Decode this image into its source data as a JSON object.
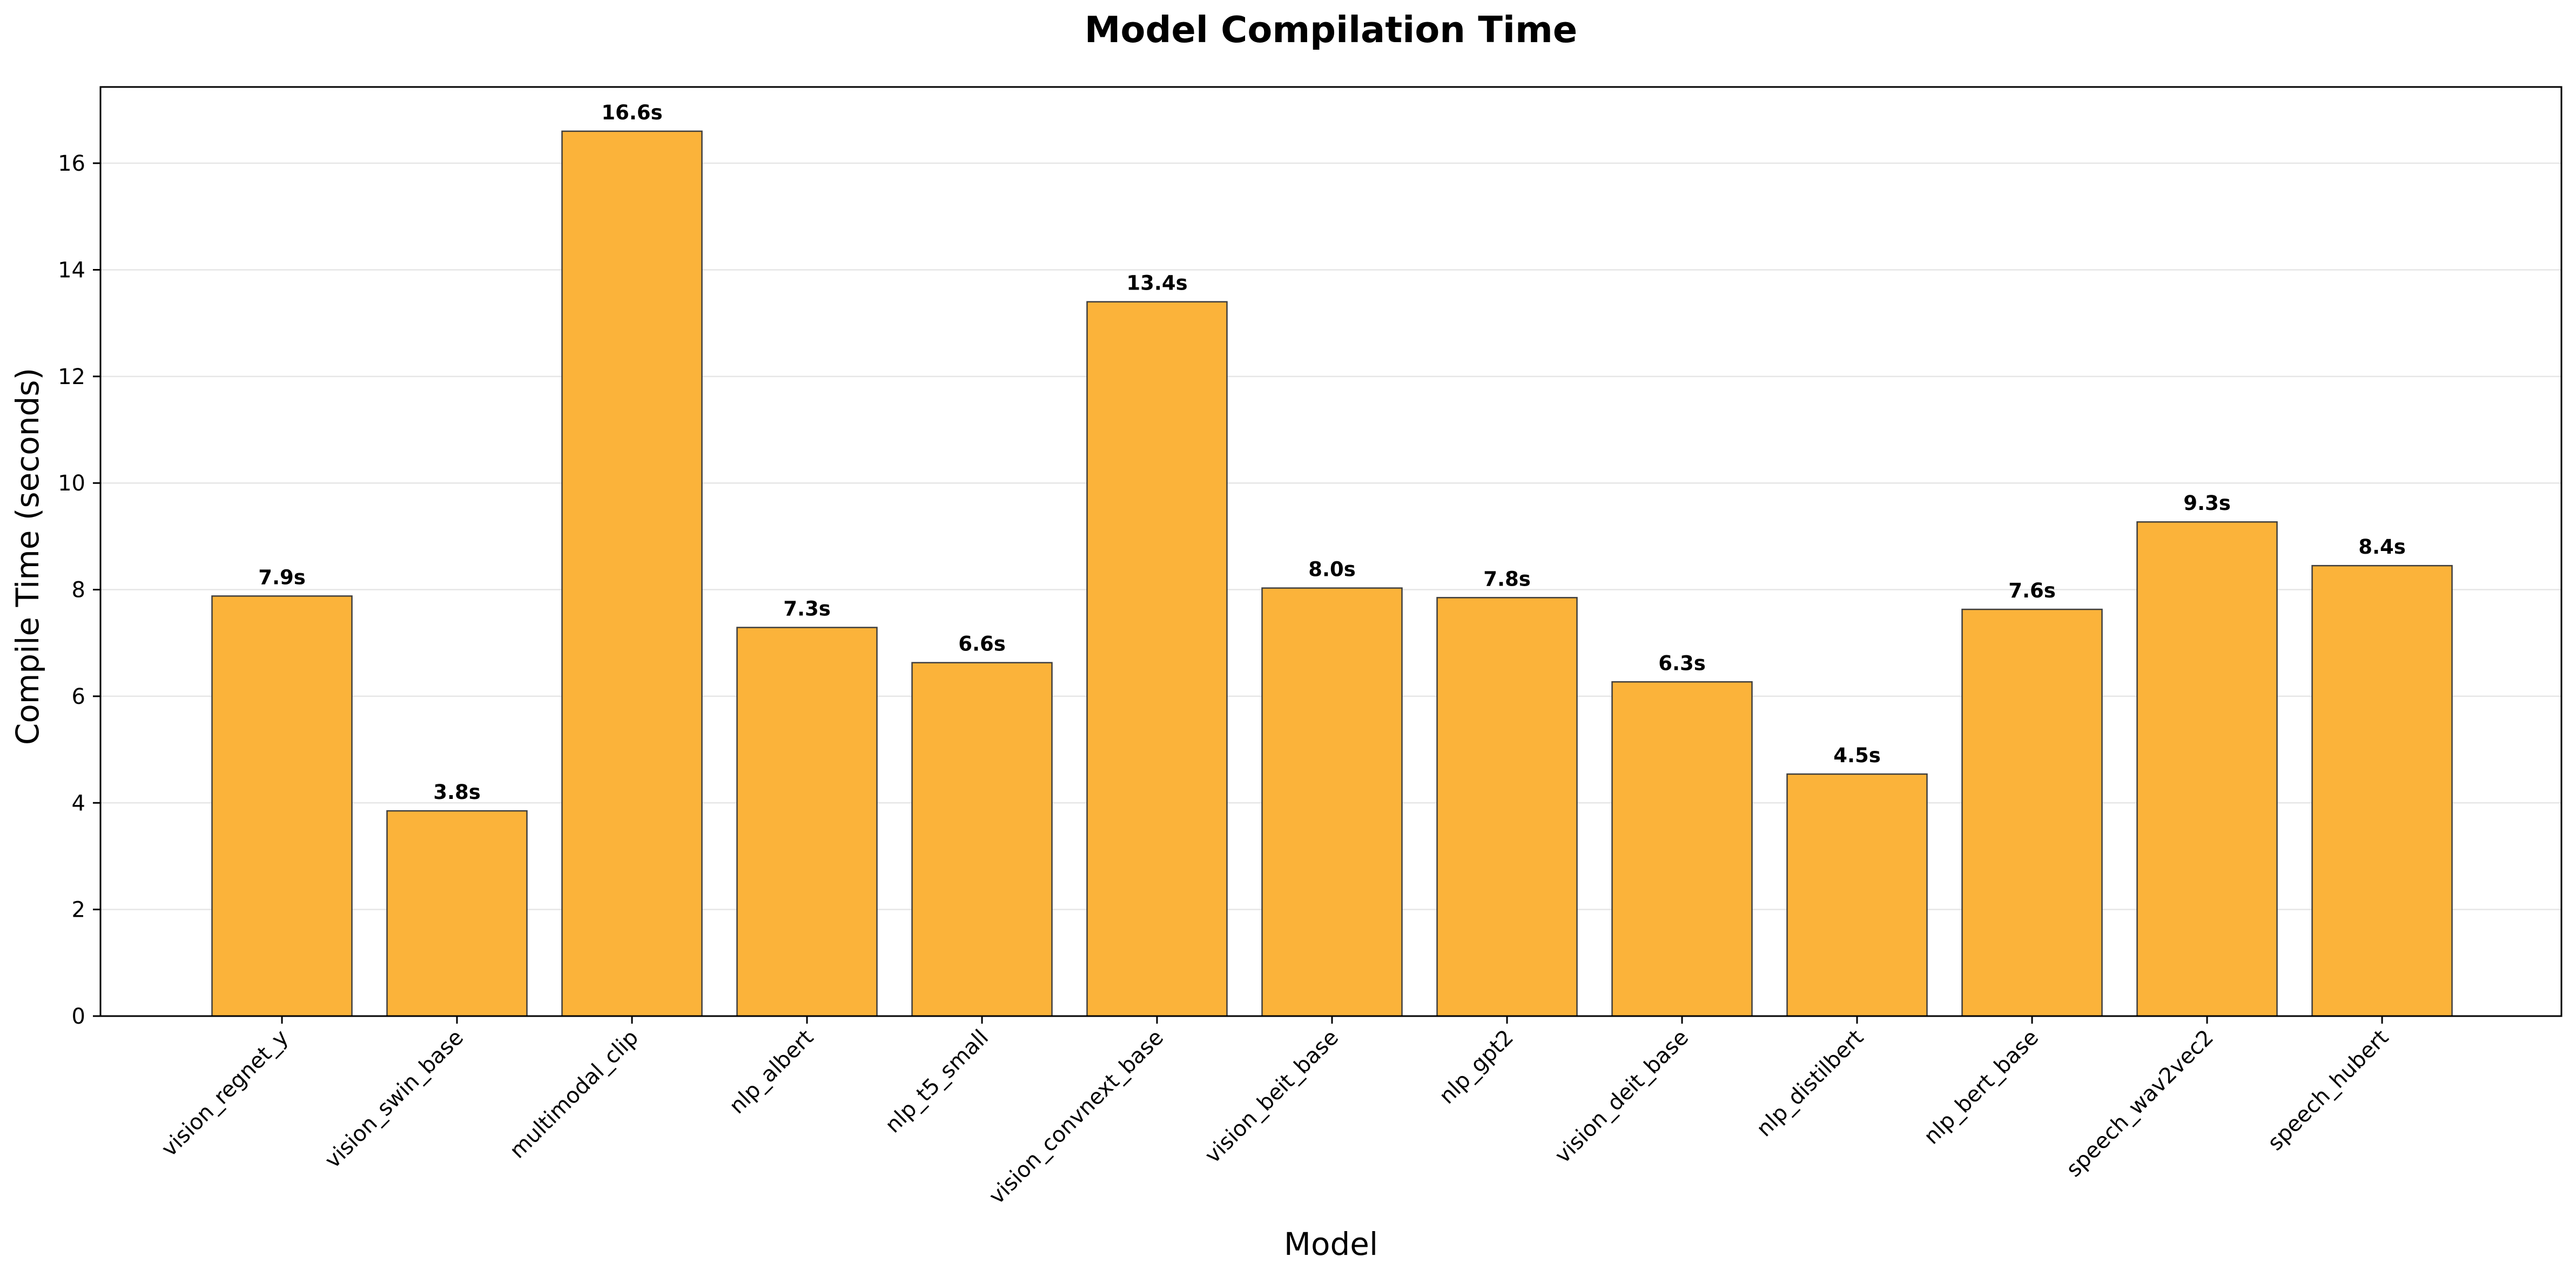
{
  "chart_data": {
    "type": "bar",
    "title": "Model Compilation Time",
    "xlabel": "Model",
    "ylabel": "Compile Time (seconds)",
    "categories": [
      "vision_regnet_y",
      "vision_swin_base",
      "multimodal_clip",
      "nlp_albert",
      "nlp_t5_small",
      "vision_convnext_base",
      "vision_beit_base",
      "nlp_gpt2",
      "vision_deit_base",
      "nlp_distilbert",
      "nlp_bert_base",
      "speech_wav2vec2",
      "speech_hubert"
    ],
    "values": [
      7.88,
      3.85,
      16.6,
      7.29,
      6.63,
      13.4,
      8.03,
      7.85,
      6.27,
      4.54,
      7.63,
      9.27,
      8.45
    ],
    "data_labels": [
      "7.9s",
      "3.8s",
      "16.6s",
      "7.3s",
      "6.6s",
      "13.4s",
      "8.0s",
      "7.8s",
      "6.3s",
      "4.5s",
      "7.6s",
      "9.3s",
      "8.4s"
    ],
    "ylim": [
      0,
      17.43
    ],
    "yticks": [
      0,
      2,
      4,
      6,
      8,
      10,
      12,
      14,
      16
    ],
    "ytick_labels": [
      "0",
      "2",
      "4",
      "6",
      "8",
      "10",
      "12",
      "14",
      "16"
    ],
    "grid": "horizontal",
    "legend": "none",
    "bar_color": "#fbb33a",
    "bar_edge_color": "#3d3d3d",
    "grid_color": "#e6e6e6"
  }
}
